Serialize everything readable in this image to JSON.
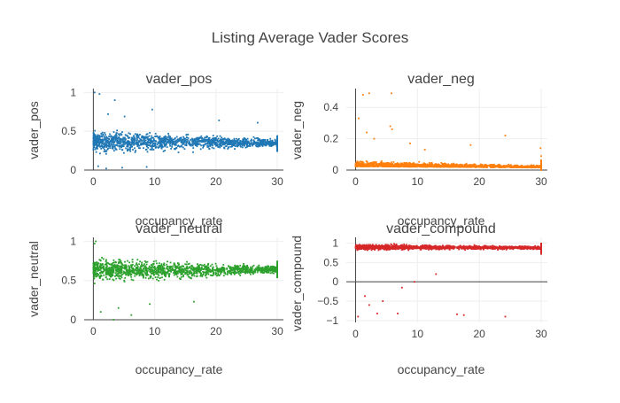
{
  "title": "Listing Average Vader Scores",
  "colors": {
    "text": "#444444",
    "grid": "#eeeeee",
    "zeroline": "#444444"
  },
  "chart_data": [
    {
      "type": "scatter",
      "title": "vader_pos",
      "xlabel": "occupancy_rate",
      "ylabel": "vader_pos",
      "xlim": [
        -1.5,
        31
      ],
      "ylim": [
        0,
        1.05
      ],
      "xticks": [
        0,
        10,
        20,
        30
      ],
      "yticks": [
        0,
        0.5,
        1
      ],
      "color": "#1f77b4",
      "grid": true,
      "summary": {
        "center_at_x0": 0.37,
        "center_at_x30": 0.35,
        "spread_at_x0": 0.14,
        "spread_at_x30": 0.05
      },
      "points": [
        [
          0.2,
          1.0
        ],
        [
          9.6,
          0.78
        ],
        [
          2.4,
          0.72
        ],
        [
          5.1,
          0.69
        ],
        [
          20.5,
          0.64
        ],
        [
          26.8,
          0.61
        ],
        [
          0.8,
          0.05
        ],
        [
          2.1,
          0.02
        ],
        [
          4.7,
          0.03
        ],
        [
          8.7,
          0.04
        ],
        [
          1.0,
          0.98
        ],
        [
          3.5,
          0.9
        ]
      ]
    },
    {
      "type": "scatter",
      "title": "vader_neg",
      "xlabel": "occupancy_rate",
      "ylabel": "vader_neg",
      "xlim": [
        -1.5,
        31
      ],
      "ylim": [
        0,
        0.52
      ],
      "xticks": [
        0,
        10,
        20,
        30
      ],
      "yticks": [
        0,
        0.2,
        0.4
      ],
      "color": "#ff7f0e",
      "grid": true,
      "summary": {
        "center_at_x0": 0.035,
        "center_at_x30": 0.02,
        "spread_at_x0": 0.03,
        "spread_at_x30": 0.012
      },
      "points": [
        [
          1.2,
          0.48
        ],
        [
          2.2,
          0.49
        ],
        [
          5.8,
          0.49
        ],
        [
          0.5,
          0.33
        ],
        [
          1.8,
          0.24
        ],
        [
          3.0,
          0.2
        ],
        [
          5.6,
          0.28
        ],
        [
          5.9,
          0.26
        ],
        [
          8.8,
          0.17
        ],
        [
          11.2,
          0.13
        ],
        [
          18.6,
          0.16
        ],
        [
          24.2,
          0.22
        ],
        [
          29.9,
          0.14
        ]
      ]
    },
    {
      "type": "scatter",
      "title": "vader_neutral",
      "xlabel": "occupancy_rate",
      "ylabel": "vader_neutral",
      "xlim": [
        -1.5,
        31
      ],
      "ylim": [
        0,
        1.05
      ],
      "xticks": [
        0,
        10,
        20,
        30
      ],
      "yticks": [
        0,
        0.5,
        1
      ],
      "color": "#2ca02c",
      "grid": true,
      "summary": {
        "center_at_x0": 0.63,
        "center_at_x30": 0.64,
        "spread_at_x0": 0.14,
        "spread_at_x30": 0.05
      },
      "points": [
        [
          0.4,
          1.0
        ],
        [
          3.3,
          0.0
        ],
        [
          6.2,
          0.06
        ],
        [
          1.2,
          0.1
        ],
        [
          4.1,
          0.15
        ],
        [
          9.2,
          0.2
        ],
        [
          16.4,
          0.23
        ],
        [
          0.2,
          0.97
        ]
      ]
    },
    {
      "type": "scatter",
      "title": "vader_compound",
      "xlabel": "occupancy_rate",
      "ylabel": "vader_compound",
      "xlim": [
        -1.5,
        31
      ],
      "ylim": [
        -1.05,
        1.15
      ],
      "xticks": [
        0,
        10,
        20,
        30
      ],
      "yticks": [
        -1,
        -0.5,
        0,
        0.5,
        1
      ],
      "color": "#d62728",
      "grid": true,
      "summary": {
        "center_at_x0": 0.9,
        "center_at_x30": 0.88,
        "spread_at_x0": 0.07,
        "spread_at_x30": 0.04
      },
      "points": [
        [
          0.4,
          -0.9
        ],
        [
          1.5,
          -0.37
        ],
        [
          3.5,
          -0.82
        ],
        [
          4.4,
          -0.5
        ],
        [
          6.8,
          -0.82
        ],
        [
          7.5,
          -0.15
        ],
        [
          16.4,
          -0.84
        ],
        [
          17.5,
          -0.86
        ],
        [
          24.2,
          -0.9
        ],
        [
          2.2,
          -0.6
        ],
        [
          9.5,
          0.0
        ],
        [
          13.0,
          0.2
        ]
      ]
    }
  ]
}
